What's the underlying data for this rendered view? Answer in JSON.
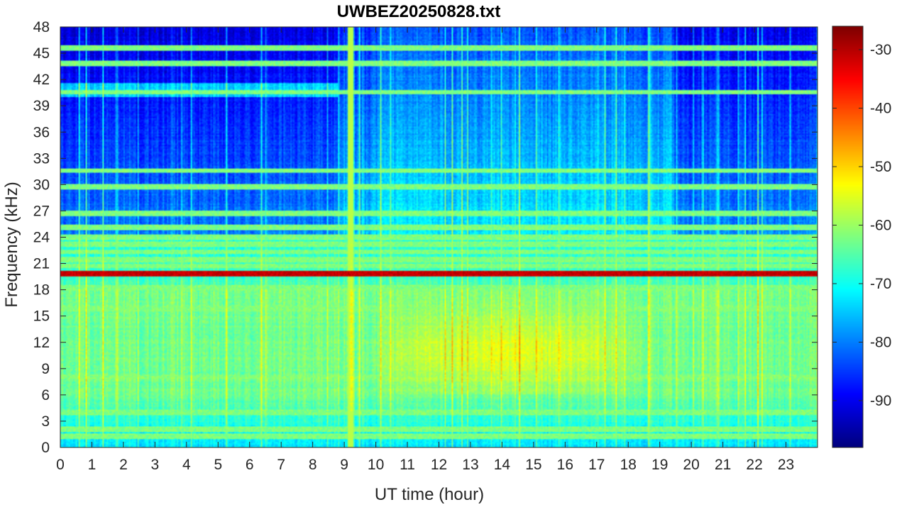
{
  "chart_data": {
    "type": "heatmap",
    "title": "UWBEZ20250828.txt",
    "xlabel": "UT time (hour)",
    "ylabel": "Frequency (kHz)",
    "x_ticks": [
      "0",
      "1",
      "2",
      "3",
      "4",
      "5",
      "6",
      "7",
      "8",
      "9",
      "10",
      "11",
      "12",
      "13",
      "14",
      "15",
      "16",
      "17",
      "18",
      "19",
      "20",
      "21",
      "22",
      "23"
    ],
    "y_ticks": [
      "0",
      "3",
      "6",
      "9",
      "12",
      "15",
      "18",
      "21",
      "24",
      "27",
      "30",
      "33",
      "36",
      "39",
      "42",
      "45",
      "48"
    ],
    "xlim": [
      0,
      24
    ],
    "ylim": [
      0,
      48
    ],
    "colorbar": {
      "colormap": "jet",
      "range": [
        -98,
        -26
      ],
      "ticks": [
        "-90",
        "-80",
        "-70",
        "-60",
        "-50",
        "-40",
        "-30"
      ]
    },
    "features": {
      "strong_carrier_khz": 19.8,
      "narrowband_lines_khz": [
        1.2,
        2.0,
        3.9,
        8.0,
        15.8,
        18.2,
        20.7,
        21.4,
        22.3,
        23.2,
        24.0,
        25.1,
        26.7,
        29.8,
        31.6,
        40.6,
        43.9,
        45.7
      ],
      "impulsive_time_hour": 9.2,
      "most_intense_band_khz": [
        6,
        18
      ],
      "most_intense_period_hour": [
        9.5,
        19
      ]
    }
  }
}
